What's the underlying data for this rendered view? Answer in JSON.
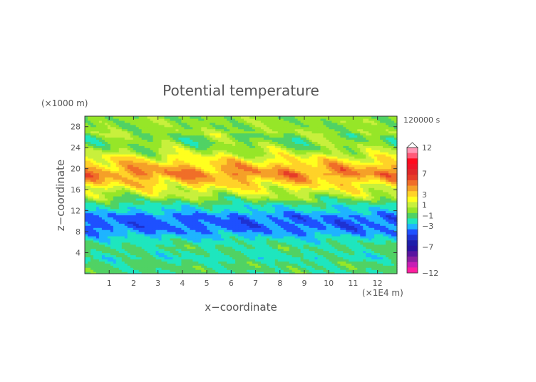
{
  "chart_data": {
    "type": "heatmap",
    "title": "Potential temperature",
    "xlabel": "x−coordinate",
    "ylabel": "z−coordinate",
    "x_unit": "(×1E4 m)",
    "y_unit": "(×1000 m)",
    "time_label": "120000 s",
    "xlim": [
      0,
      12.8
    ],
    "ylim": [
      0,
      30
    ],
    "x_ticks": [
      "1",
      "2",
      "3",
      "4",
      "5",
      "6",
      "7",
      "8",
      "9",
      "10",
      "11",
      "12"
    ],
    "y_ticks": [
      "4",
      "8",
      "12",
      "16",
      "20",
      "24",
      "28"
    ],
    "grid": false,
    "colorbar": {
      "position": "right",
      "labels": [
        "12",
        "7",
        "3",
        "1",
        "−1",
        "−3",
        "−7",
        "−12"
      ],
      "colors": [
        "#ff96b4",
        "#ff5a78",
        "#ff0a1e",
        "#f01428",
        "#e02828",
        "#e63c28",
        "#f06e28",
        "#f5a028",
        "#ffd228",
        "#ffff1e",
        "#c8f03c",
        "#96e628",
        "#50d264",
        "#1ee6be",
        "#1eb4ff",
        "#1e50ff",
        "#1e32d2",
        "#1e1eaa",
        "#2814a0",
        "#5a14a0",
        "#8c1ea0",
        "#c81eb4",
        "#ff1ea0"
      ]
    },
    "z_profile": {
      "z": [
        0,
        1,
        2,
        3,
        4,
        5,
        6,
        7,
        8,
        9,
        10,
        11,
        12,
        13,
        14,
        15,
        16,
        17,
        18,
        19,
        20,
        21,
        22,
        23,
        24,
        25,
        26,
        27,
        28,
        29,
        30
      ],
      "value": [
        -1.5,
        -1.2,
        -1.3,
        -2.0,
        -1.6,
        -1.4,
        -1.9,
        -2.5,
        -3.5,
        -4.0,
        -4.0,
        -3.8,
        -2.6,
        -2.0,
        -0.8,
        0.5,
        1.5,
        2.5,
        3.5,
        4.5,
        4.0,
        3.0,
        2.0,
        0.8,
        0.0,
        -0.3,
        -0.4,
        0.2,
        -0.3,
        0.0,
        -0.3
      ]
    }
  }
}
